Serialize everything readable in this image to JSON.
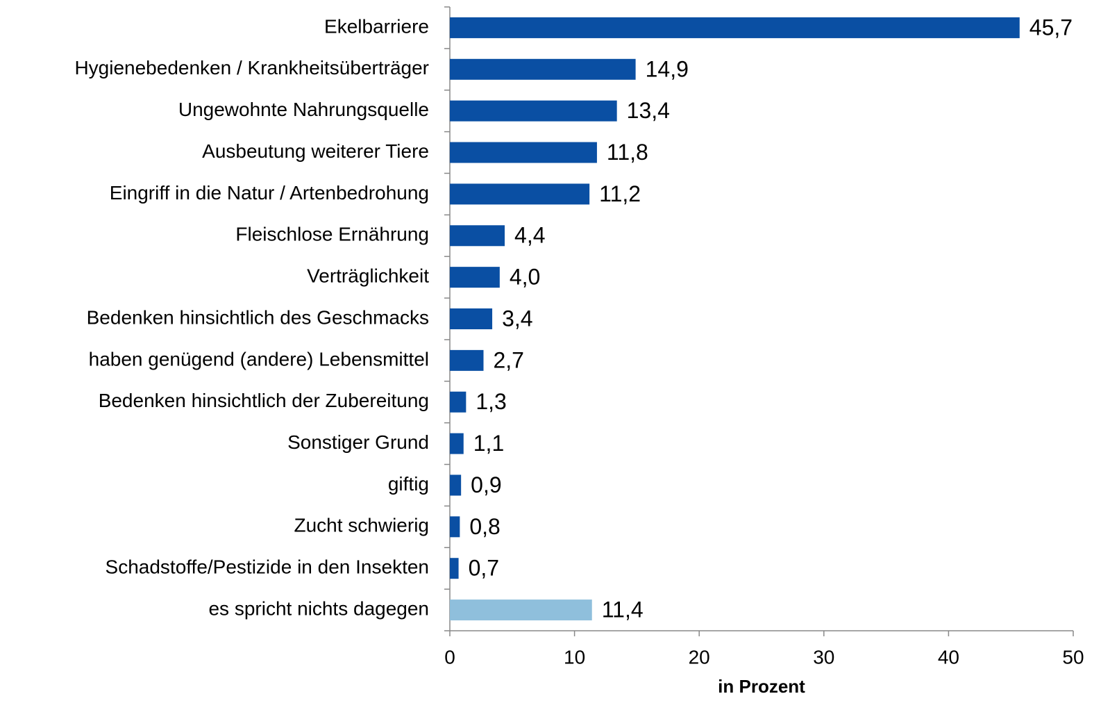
{
  "chart_data": {
    "type": "bar",
    "orientation": "horizontal",
    "categories": [
      "Ekelbarriere",
      "Hygienebedenken / Krankheitsüberträger",
      "Ungewohnte Nahrungsquelle",
      "Ausbeutung weiterer Tiere",
      "Eingriff in die Natur / Artenbedrohung",
      "Fleischlose Ernährung",
      "Verträglichkeit",
      "Bedenken hinsichtlich des Geschmacks",
      "haben genügend (andere) Lebensmittel",
      "Bedenken hinsichtlich der Zubereitung",
      "Sonstiger Grund",
      "giftig",
      "Zucht schwierig",
      "Schadstoffe/Pestizide in den Insekten",
      "es spricht nichts dagegen"
    ],
    "values": [
      45.7,
      14.9,
      13.4,
      11.8,
      11.2,
      4.4,
      4.0,
      3.4,
      2.7,
      1.3,
      1.1,
      0.9,
      0.8,
      0.7,
      11.4
    ],
    "value_labels": [
      "45,7",
      "14,9",
      "13,4",
      "11,8",
      "11,2",
      "4,4",
      "4,0",
      "3,4",
      "2,7",
      "1,3",
      "1,1",
      "0,9",
      "0,8",
      "0,7",
      "11,4"
    ],
    "colors": [
      "#0a4fa3",
      "#0a4fa3",
      "#0a4fa3",
      "#0a4fa3",
      "#0a4fa3",
      "#0a4fa3",
      "#0a4fa3",
      "#0a4fa3",
      "#0a4fa3",
      "#0a4fa3",
      "#0a4fa3",
      "#0a4fa3",
      "#0a4fa3",
      "#0a4fa3",
      "#8fbfdc"
    ],
    "xlabel": "in Prozent",
    "xlim": [
      0,
      50
    ],
    "xticks": [
      0,
      10,
      20,
      30,
      40,
      50
    ],
    "grid": false
  }
}
